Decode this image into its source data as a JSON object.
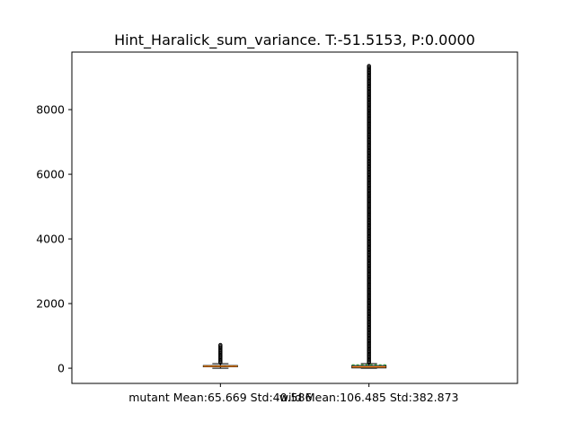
{
  "chart_data": {
    "type": "boxplot",
    "title": "Hint_Haralick_sum_variance. T:-51.5153, P:0.0000",
    "xlabel": "",
    "ylabel": "",
    "ylim": [
      -470,
      9780
    ],
    "yticks": [
      0,
      2000,
      4000,
      6000,
      8000
    ],
    "grid": false,
    "categories": [
      "mutant Mean:65.669 Std:40.586",
      "wild Mean:106.485 Std:382.873"
    ],
    "boxes": [
      {
        "name": "mutant",
        "q1": 45,
        "median": 62,
        "q3": 82,
        "whisker_low": 0,
        "whisker_high": 140,
        "outlier_max": 720,
        "mean": 65.669,
        "std": 40.586
      },
      {
        "name": "wild",
        "q1": 10,
        "median": 40,
        "q3": 80,
        "whisker_low": 0,
        "whisker_high": 140,
        "outlier_max": 9350,
        "mean": 106.485,
        "std": 382.873
      }
    ],
    "colors": {
      "box": "#000000",
      "median": "#ff7f0e",
      "mean_line": "#2ca02c",
      "outlier": "#000000"
    }
  }
}
